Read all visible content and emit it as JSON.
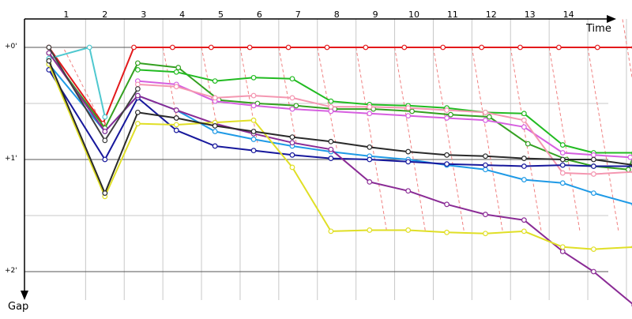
{
  "chart_data": {
    "type": "line",
    "x_axis_title": "Time",
    "y_axis_title": "Gap",
    "x_tick_labels": [
      "1",
      "2",
      "3",
      "4",
      "5",
      "6",
      "7",
      "8",
      "9",
      "10",
      "11",
      "12",
      "13",
      "14"
    ],
    "y_tick_labels": [
      "+0'",
      "+1'",
      "+2'"
    ],
    "y_ticks": [
      0,
      1,
      2
    ],
    "ylim": [
      0,
      2.25
    ],
    "xlim": [
      0.5,
      16.3
    ],
    "grid": true,
    "colors": {
      "axis": "#000000",
      "major_grid": "#555555",
      "minor_grid": "#c8c8c8",
      "lap_grid": "#c8c8c8",
      "pit_line": "#f08080"
    },
    "pit_lines": [
      [
        [
          0.95,
          0.02
        ],
        [
          1.95,
          0.7
        ]
      ],
      [
        [
          3.5,
          0.0
        ],
        [
          3.9,
          0.7
        ]
      ],
      [
        [
          4.5,
          0.0
        ],
        [
          4.9,
          0.7
        ]
      ],
      [
        [
          5.5,
          0.0
        ],
        [
          5.95,
          0.85
        ]
      ],
      [
        [
          6.5,
          0.0
        ],
        [
          6.95,
          0.85
        ]
      ],
      [
        [
          7.5,
          0.0
        ],
        [
          8.0,
          0.9
        ]
      ],
      [
        [
          8.5,
          0.0
        ],
        [
          9.3,
          1.65
        ]
      ],
      [
        [
          9.5,
          0.0
        ],
        [
          10.3,
          1.65
        ]
      ],
      [
        [
          10.5,
          0.0
        ],
        [
          11.3,
          1.65
        ]
      ],
      [
        [
          11.5,
          0.0
        ],
        [
          12.3,
          1.65
        ]
      ],
      [
        [
          12.5,
          0.0
        ],
        [
          13.3,
          1.65
        ]
      ],
      [
        [
          13.5,
          0.0
        ],
        [
          14.3,
          1.65
        ]
      ],
      [
        [
          14.5,
          0.0
        ],
        [
          15.3,
          1.65
        ]
      ],
      [
        [
          15.4,
          -0.25
        ],
        [
          16.3,
          1.65
        ]
      ]
    ],
    "series": [
      {
        "color": "#e31a1c",
        "points": [
          [
            0.55,
            0.0
          ],
          [
            1.95,
            0.68
          ],
          [
            2.75,
            0.0
          ],
          [
            3.75,
            0.0
          ],
          [
            4.75,
            0.0
          ],
          [
            5.75,
            0.0
          ],
          [
            6.75,
            0.0
          ],
          [
            7.75,
            0.0
          ],
          [
            8.75,
            0.0
          ],
          [
            9.75,
            0.0
          ],
          [
            10.75,
            0.0
          ],
          [
            11.75,
            0.0
          ],
          [
            12.75,
            0.0
          ],
          [
            13.75,
            0.0
          ],
          [
            14.75,
            0.0
          ],
          [
            15.7,
            0.0
          ]
        ]
      },
      {
        "color": "#4fc8cf",
        "points": [
          [
            0.55,
            0.1
          ],
          [
            1.6,
            0.0
          ],
          [
            2.0,
            0.62
          ]
        ]
      },
      {
        "color": "#34a021",
        "points": [
          [
            0.55,
            0.05
          ],
          [
            2.0,
            0.72
          ],
          [
            2.85,
            0.14
          ],
          [
            3.9,
            0.18
          ],
          [
            4.95,
            0.47
          ],
          [
            5.95,
            0.5
          ],
          [
            6.95,
            0.52
          ],
          [
            7.95,
            0.55
          ],
          [
            8.95,
            0.55
          ],
          [
            9.95,
            0.57
          ],
          [
            10.95,
            0.6
          ],
          [
            11.95,
            0.62
          ],
          [
            12.95,
            0.86
          ],
          [
            13.95,
            1.0
          ],
          [
            14.65,
            1.06
          ],
          [
            15.55,
            1.09
          ],
          [
            15.7,
            0.95
          ]
        ]
      },
      {
        "color": "#22bb22",
        "points": [
          [
            2.85,
            0.2
          ],
          [
            3.85,
            0.22
          ],
          [
            4.85,
            0.3
          ],
          [
            5.85,
            0.27
          ],
          [
            6.85,
            0.28
          ],
          [
            7.85,
            0.48
          ],
          [
            8.85,
            0.51
          ],
          [
            9.85,
            0.52
          ],
          [
            10.85,
            0.54
          ],
          [
            11.85,
            0.58
          ],
          [
            12.85,
            0.59
          ],
          [
            13.85,
            0.87
          ],
          [
            14.65,
            0.94
          ],
          [
            15.7,
            0.94
          ]
        ]
      },
      {
        "color": "#d65fe0",
        "points": [
          [
            2.85,
            0.3
          ],
          [
            3.85,
            0.33
          ],
          [
            4.85,
            0.48
          ],
          [
            5.85,
            0.52
          ],
          [
            6.85,
            0.55
          ],
          [
            7.85,
            0.57
          ],
          [
            8.85,
            0.59
          ],
          [
            9.85,
            0.61
          ],
          [
            10.85,
            0.63
          ],
          [
            11.85,
            0.65
          ],
          [
            12.85,
            0.71
          ],
          [
            13.85,
            0.94
          ],
          [
            14.65,
            0.96
          ],
          [
            15.6,
            0.98
          ],
          [
            15.7,
            1.02
          ]
        ]
      },
      {
        "color": "#f497b1",
        "points": [
          [
            2.85,
            0.33
          ],
          [
            3.85,
            0.35
          ],
          [
            4.85,
            0.45
          ],
          [
            5.85,
            0.43
          ],
          [
            6.85,
            0.45
          ],
          [
            7.85,
            0.53
          ],
          [
            8.85,
            0.53
          ],
          [
            9.85,
            0.54
          ],
          [
            10.85,
            0.56
          ],
          [
            11.85,
            0.58
          ],
          [
            12.85,
            0.65
          ],
          [
            13.85,
            1.12
          ],
          [
            14.65,
            1.13
          ],
          [
            15.7,
            1.11
          ]
        ]
      },
      {
        "color": "#1f9ae6",
        "points": [
          [
            0.55,
            0.15
          ],
          [
            2.0,
            0.75
          ],
          [
            2.85,
            0.43
          ],
          [
            3.85,
            0.56
          ],
          [
            4.85,
            0.75
          ],
          [
            5.85,
            0.82
          ],
          [
            6.85,
            0.88
          ],
          [
            7.85,
            0.93
          ],
          [
            8.85,
            0.97
          ],
          [
            9.85,
            1.0
          ],
          [
            10.85,
            1.05
          ],
          [
            11.85,
            1.09
          ],
          [
            12.85,
            1.18
          ],
          [
            13.85,
            1.21
          ],
          [
            14.65,
            1.3
          ],
          [
            15.7,
            1.4
          ]
        ]
      },
      {
        "color": "#17189c",
        "points": [
          [
            0.55,
            0.2
          ],
          [
            2.0,
            1.0
          ],
          [
            2.85,
            0.45
          ],
          [
            3.85,
            0.74
          ],
          [
            4.85,
            0.88
          ],
          [
            5.85,
            0.92
          ],
          [
            6.85,
            0.96
          ],
          [
            7.85,
            0.99
          ],
          [
            8.85,
            1.0
          ],
          [
            9.85,
            1.02
          ],
          [
            10.85,
            1.04
          ],
          [
            11.85,
            1.05
          ],
          [
            12.85,
            1.06
          ],
          [
            13.85,
            1.05
          ],
          [
            14.65,
            1.06
          ],
          [
            15.7,
            1.06
          ]
        ]
      },
      {
        "color": "#8a2b95",
        "points": [
          [
            0.55,
            0.05
          ],
          [
            2.0,
            0.75
          ],
          [
            2.85,
            0.43
          ],
          [
            3.85,
            0.56
          ],
          [
            4.85,
            0.68
          ],
          [
            5.85,
            0.77
          ],
          [
            6.85,
            0.85
          ],
          [
            7.85,
            0.91
          ],
          [
            8.85,
            1.2
          ],
          [
            9.85,
            1.28
          ],
          [
            10.85,
            1.4
          ],
          [
            11.85,
            1.49
          ],
          [
            12.85,
            1.54
          ],
          [
            13.85,
            1.82
          ],
          [
            14.65,
            2.0
          ],
          [
            15.7,
            2.3
          ]
        ]
      },
      {
        "color": "#e0df26",
        "points": [
          [
            0.55,
            0.15
          ],
          [
            2.0,
            1.33
          ],
          [
            2.85,
            0.68
          ],
          [
            3.85,
            0.69
          ],
          [
            4.85,
            0.67
          ],
          [
            5.85,
            0.65
          ],
          [
            6.85,
            1.07
          ],
          [
            7.85,
            1.64
          ],
          [
            8.85,
            1.63
          ],
          [
            9.85,
            1.63
          ],
          [
            10.85,
            1.65
          ],
          [
            11.85,
            1.66
          ],
          [
            12.85,
            1.64
          ],
          [
            13.85,
            1.78
          ],
          [
            14.65,
            1.8
          ],
          [
            15.7,
            1.78
          ]
        ]
      },
      {
        "color": "#2a2a2a",
        "points": [
          [
            0.55,
            0.12
          ],
          [
            2.0,
            1.3
          ],
          [
            2.85,
            0.58
          ],
          [
            3.85,
            0.63
          ],
          [
            4.85,
            0.7
          ],
          [
            5.85,
            0.75
          ],
          [
            6.85,
            0.8
          ],
          [
            7.85,
            0.84
          ],
          [
            8.85,
            0.89
          ],
          [
            9.85,
            0.93
          ],
          [
            10.85,
            0.96
          ],
          [
            11.85,
            0.97
          ],
          [
            12.85,
            0.99
          ],
          [
            13.85,
            1.0
          ],
          [
            14.65,
            1.0
          ],
          [
            15.7,
            1.05
          ]
        ]
      },
      {
        "color": "#404040",
        "points": [
          [
            0.55,
            0.0
          ],
          [
            2.0,
            0.83
          ],
          [
            2.85,
            0.37
          ]
        ]
      }
    ]
  }
}
